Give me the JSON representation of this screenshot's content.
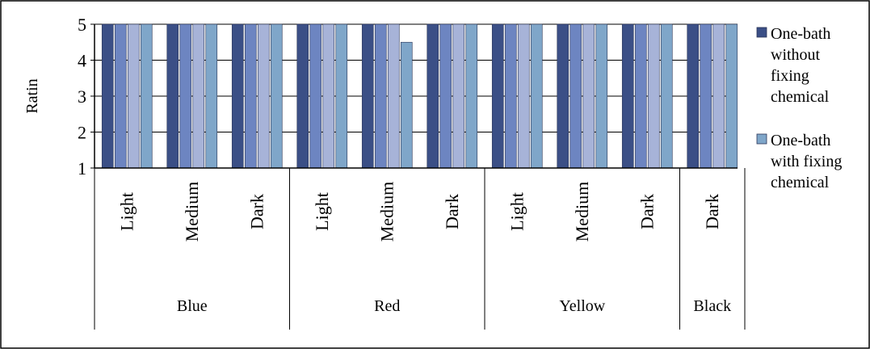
{
  "chart_data": {
    "type": "bar",
    "ylabel": "Ratin",
    "ylim": [
      1,
      5
    ],
    "yticks": [
      1,
      2,
      3,
      4,
      5
    ],
    "grid": true,
    "legend_position": "right",
    "groups": [
      {
        "label": "Blue",
        "categories": [
          "Light",
          "Medium",
          "Dark"
        ]
      },
      {
        "label": "Red",
        "categories": [
          "Light",
          "Medium",
          "Dark"
        ]
      },
      {
        "label": "Yellow",
        "categories": [
          "Light",
          "Medium",
          "Dark"
        ]
      },
      {
        "label": "Black",
        "categories": [
          "Dark"
        ]
      }
    ],
    "series": [
      {
        "color": "#3b4f86",
        "values": [
          5,
          5,
          5,
          5,
          5,
          5,
          5,
          5,
          5,
          5
        ]
      },
      {
        "color": "#6d85c1",
        "values": [
          5,
          5,
          5,
          5,
          5,
          5,
          5,
          5,
          5,
          5
        ]
      },
      {
        "color": "#a7b3d8",
        "values": [
          5,
          5,
          5,
          5,
          5,
          5,
          5,
          5,
          5,
          5
        ]
      },
      {
        "color": "#7fa6c9",
        "values": [
          5,
          5,
          5,
          5,
          4.5,
          5,
          5,
          5,
          5,
          5
        ]
      }
    ],
    "legend": [
      {
        "label_lines": [
          "One-bath",
          "without",
          "fixing",
          "chemical"
        ],
        "color": "#3b4f86"
      },
      {
        "label_lines": [
          "One-bath",
          "with fixing",
          "chemical"
        ],
        "color": "#7fa6c9"
      }
    ]
  }
}
